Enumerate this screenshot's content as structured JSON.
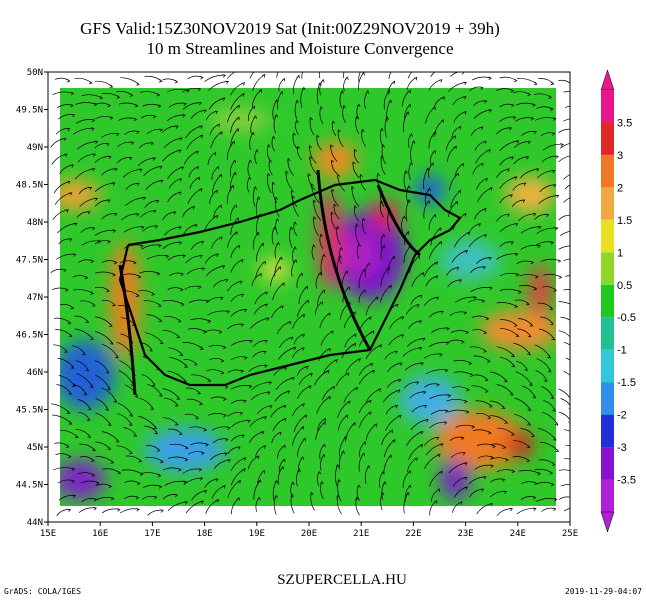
{
  "title": [
    "GFS Valid:15Z30NOV2019 Sat (Init:00Z29NOV2019 + 39h)",
    "10 m Streamlines and Moisture Convergence"
  ],
  "lat_labels": [
    "50N",
    "49.5N",
    "49N",
    "48.5N",
    "48N",
    "47.5N",
    "47N",
    "46.5N",
    "46N",
    "45.5N",
    "45N",
    "44.5N",
    "44N"
  ],
  "lon_labels": [
    "15E",
    "16E",
    "17E",
    "18E",
    "19E",
    "20E",
    "21E",
    "22E",
    "23E",
    "24E",
    "25E"
  ],
  "colorbar": {
    "labels": [
      3.5,
      3,
      2,
      1.5,
      1,
      0.5,
      -0.5,
      -1,
      -1.5,
      -2,
      -3,
      -3.5
    ]
  },
  "footer": {
    "left": "GrADS: COLA/IGES",
    "center": "SZUPERCELLA.HU",
    "right": "2019-11-29-04:07"
  }
}
